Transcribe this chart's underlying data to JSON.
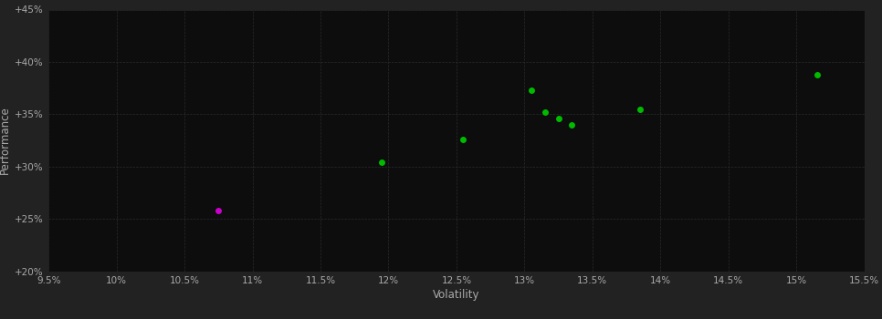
{
  "background_color": "#222222",
  "plot_bg_color": "#0d0d0d",
  "grid_color": "#2a2a2a",
  "text_color": "#aaaaaa",
  "xlabel": "Volatility",
  "ylabel": "Performance",
  "xlim": [
    0.095,
    0.155
  ],
  "ylim": [
    0.2,
    0.45
  ],
  "xticks": [
    0.095,
    0.1,
    0.105,
    0.11,
    0.115,
    0.12,
    0.125,
    0.13,
    0.135,
    0.14,
    0.145,
    0.15,
    0.155
  ],
  "yticks": [
    0.2,
    0.25,
    0.3,
    0.35,
    0.4,
    0.45
  ],
  "green_points": [
    [
      0.1195,
      0.304
    ],
    [
      0.1255,
      0.326
    ],
    [
      0.1305,
      0.373
    ],
    [
      0.1315,
      0.352
    ],
    [
      0.1325,
      0.346
    ],
    [
      0.1335,
      0.34
    ],
    [
      0.1385,
      0.355
    ],
    [
      0.1515,
      0.388
    ]
  ],
  "magenta_points": [
    [
      0.1075,
      0.258
    ]
  ],
  "green_color": "#00bb00",
  "magenta_color": "#cc00cc",
  "marker_size": 5
}
